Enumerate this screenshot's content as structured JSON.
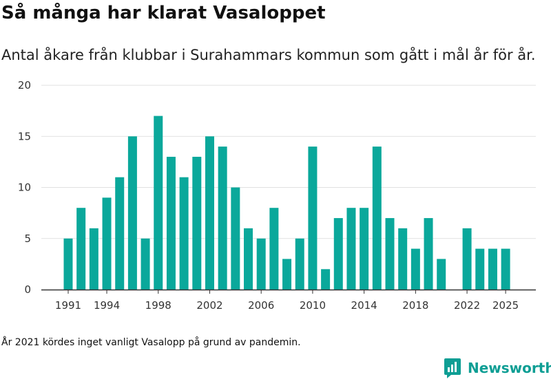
{
  "header": {
    "title": "Så många har klarat Vasaloppet",
    "subtitle": "Antal åkare från klubbar i Surahammars kommun som gått i mål år för år."
  },
  "footnote": "År 2021 kördes inget vanligt Vasalopp på grund av pandemin.",
  "brand": {
    "name": "Newsworthy",
    "icon": "newsworthy-logo-icon",
    "color": "#0e9e94"
  },
  "chart_data": {
    "type": "bar",
    "title": "",
    "xlabel": "",
    "ylabel": "",
    "categories": [
      1991,
      1992,
      1993,
      1994,
      1995,
      1996,
      1997,
      1998,
      1999,
      2000,
      2001,
      2002,
      2003,
      2004,
      2005,
      2006,
      2007,
      2008,
      2009,
      2010,
      2011,
      2012,
      2013,
      2014,
      2015,
      2016,
      2017,
      2018,
      2019,
      2020,
      2021,
      2022,
      2023,
      2024,
      2025
    ],
    "values": [
      5,
      8,
      6,
      9,
      11,
      15,
      5,
      17,
      13,
      11,
      13,
      15,
      14,
      10,
      6,
      5,
      8,
      3,
      5,
      14,
      2,
      7,
      8,
      8,
      14,
      7,
      6,
      4,
      7,
      3,
      null,
      6,
      4,
      4,
      4
    ],
    "ylim": [
      0,
      20
    ],
    "y_ticks": [
      0,
      5,
      10,
      15,
      20
    ],
    "x_tick_labels": [
      1991,
      1994,
      1998,
      2002,
      2006,
      2010,
      2014,
      2018,
      2022,
      2025
    ],
    "bar_color": "#0aa89b",
    "grid": "horizontal",
    "legend": "none"
  }
}
